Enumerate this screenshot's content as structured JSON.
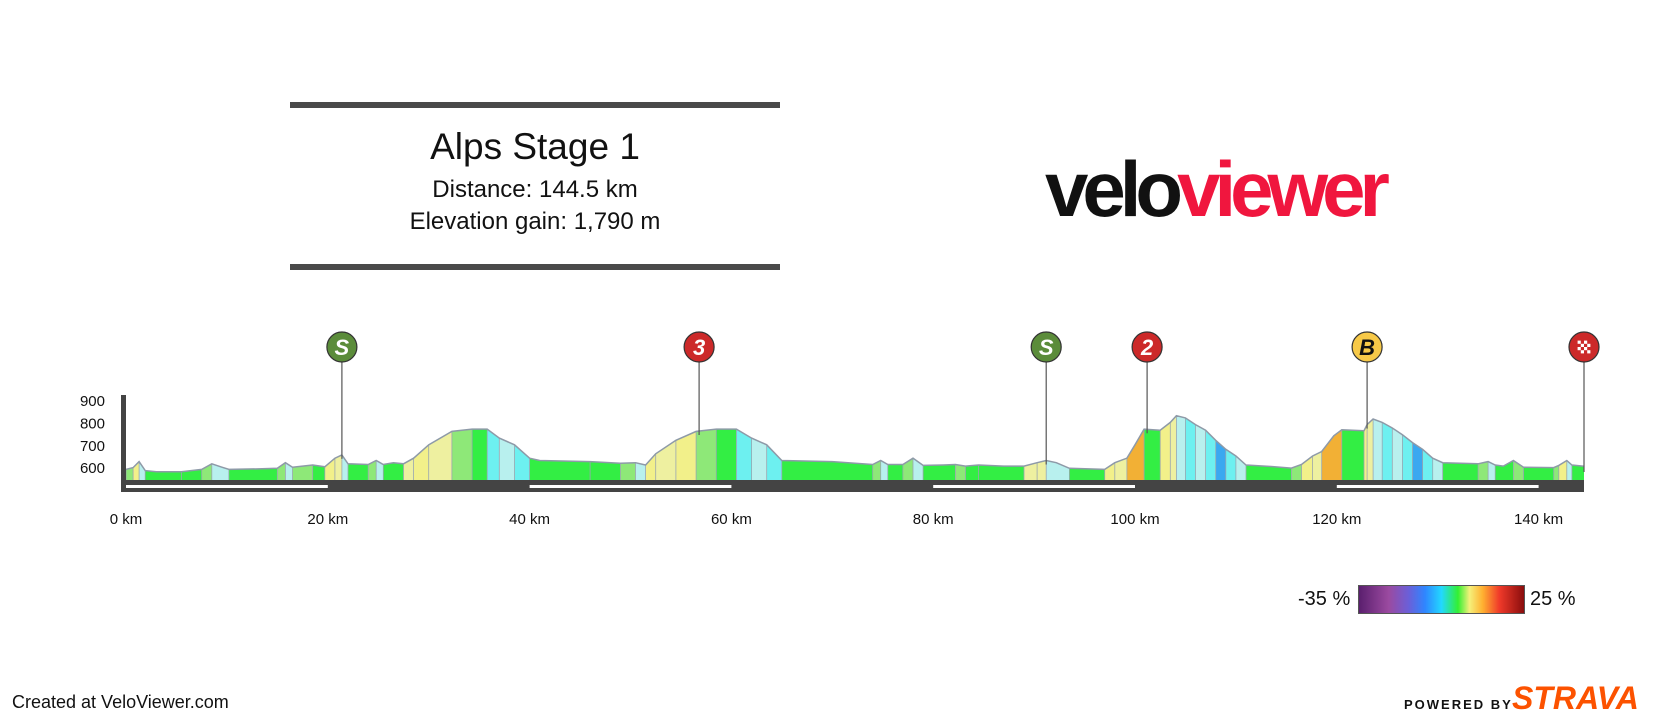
{
  "title": "Alps Stage 1",
  "distance_text": "Distance: 144.5 km",
  "elevation_text": "Elevation gain: 1,790 m",
  "logo": {
    "part1": "velo",
    "part2": "viewer"
  },
  "footer": {
    "created": "Created at VeloViewer.com",
    "powered_by": "POWERED BY",
    "brand": "STRAVA"
  },
  "gradient_legend": {
    "min_label": "-35 %",
    "max_label": "25 %"
  },
  "colors": {
    "profile_outline": "#8e9aa8",
    "flat": "#33ee44",
    "gentle": "#8ee878",
    "moderate": "#eef0a0",
    "yellow": "#f2f08a",
    "steep": "#f2b035",
    "descent_light": "#b8f0ee",
    "descent": "#6df0f0",
    "descent_steep": "#3aa8f0",
    "sprint": "#5b8c3a",
    "climb": "#cc2929",
    "bonus": "#f7c948",
    "axis": "#444444"
  },
  "chart_data": {
    "type": "area",
    "xlabel": "",
    "ylabel": "",
    "x_unit": "km",
    "xlim": [
      0,
      144.5
    ],
    "ylim": [
      500,
      950
    ],
    "y_ticks": [
      900,
      800,
      700,
      600
    ],
    "x_ticks": [
      {
        "value": 0,
        "label": "0 km"
      },
      {
        "value": 20,
        "label": "20 km"
      },
      {
        "value": 40,
        "label": "40 km"
      },
      {
        "value": 60,
        "label": "60 km"
      },
      {
        "value": 80,
        "label": "80 km"
      },
      {
        "value": 100,
        "label": "100 km"
      },
      {
        "value": 120,
        "label": "120 km"
      },
      {
        "value": 140,
        "label": "140 km"
      }
    ],
    "profile": [
      [
        0,
        590
      ],
      [
        0.7,
        598
      ],
      [
        1.3,
        625
      ],
      [
        1.9,
        585
      ],
      [
        3,
        580
      ],
      [
        5.5,
        580
      ],
      [
        7.5,
        590
      ],
      [
        8.5,
        615
      ],
      [
        9.5,
        600
      ],
      [
        10.2,
        590
      ],
      [
        13.5,
        593
      ],
      [
        15,
        595
      ],
      [
        15.8,
        620
      ],
      [
        16.5,
        600
      ],
      [
        17.5,
        605
      ],
      [
        18.5,
        610
      ],
      [
        19.7,
        602
      ],
      [
        20.7,
        640
      ],
      [
        21.4,
        655
      ],
      [
        22,
        615
      ],
      [
        24,
        612
      ],
      [
        24.8,
        630
      ],
      [
        25.5,
        612
      ],
      [
        26.5,
        620
      ],
      [
        27.5,
        615
      ],
      [
        28.5,
        640
      ],
      [
        30,
        700
      ],
      [
        32.3,
        760
      ],
      [
        34.3,
        770
      ],
      [
        35.8,
        770
      ],
      [
        37,
        730
      ],
      [
        38.5,
        700
      ],
      [
        40,
        640
      ],
      [
        41,
        630
      ],
      [
        46,
        625
      ],
      [
        49,
        618
      ],
      [
        50.5,
        620
      ],
      [
        51.5,
        610
      ],
      [
        52.5,
        660
      ],
      [
        54.5,
        720
      ],
      [
        56.5,
        760
      ],
      [
        58.5,
        770
      ],
      [
        60.5,
        770
      ],
      [
        62,
        730
      ],
      [
        63.5,
        700
      ],
      [
        65,
        630
      ],
      [
        70,
        625
      ],
      [
        74,
        612
      ],
      [
        74.8,
        630
      ],
      [
        75.5,
        612
      ],
      [
        77,
        612
      ],
      [
        78,
        640
      ],
      [
        79,
        608
      ],
      [
        81,
        610
      ],
      [
        82.2,
        612
      ],
      [
        83.2,
        605
      ],
      [
        84.5,
        610
      ],
      [
        87,
        605
      ],
      [
        89,
        605
      ],
      [
        90.3,
        620
      ],
      [
        91.2,
        630
      ],
      [
        92.2,
        620
      ],
      [
        93.5,
        595
      ],
      [
        97,
        590
      ],
      [
        98,
        620
      ],
      [
        99.2,
        640
      ],
      [
        100,
        700
      ],
      [
        100.9,
        770
      ],
      [
        102.5,
        765
      ],
      [
        103.5,
        800
      ],
      [
        104.1,
        830
      ],
      [
        105,
        820
      ],
      [
        106,
        790
      ],
      [
        107,
        765
      ],
      [
        108,
        720
      ],
      [
        109,
        680
      ],
      [
        110,
        650
      ],
      [
        111,
        610
      ],
      [
        113.5,
        603
      ],
      [
        115.5,
        596
      ],
      [
        116.5,
        612
      ],
      [
        117.6,
        650
      ],
      [
        118.5,
        670
      ],
      [
        119.7,
        740
      ],
      [
        120.5,
        767
      ],
      [
        122.7,
        763
      ],
      [
        123,
        790
      ],
      [
        123.6,
        815
      ],
      [
        124.5,
        800
      ],
      [
        125.5,
        775
      ],
      [
        126.5,
        745
      ],
      [
        127.5,
        710
      ],
      [
        128.5,
        680
      ],
      [
        129.5,
        640
      ],
      [
        130.5,
        620
      ],
      [
        134,
        615
      ],
      [
        135,
        625
      ],
      [
        135.7,
        610
      ],
      [
        136.5,
        605
      ],
      [
        137.5,
        630
      ],
      [
        138.5,
        600
      ],
      [
        141.5,
        598
      ],
      [
        142,
        608
      ],
      [
        142.8,
        630
      ],
      [
        143.3,
        610
      ],
      [
        144.5,
        604
      ]
    ],
    "segments": [
      [
        0,
        0.7,
        "gentle"
      ],
      [
        0.7,
        1.3,
        "yellow"
      ],
      [
        1.3,
        1.9,
        "descent_light"
      ],
      [
        1.9,
        5.5,
        "flat"
      ],
      [
        5.5,
        7.5,
        "flat"
      ],
      [
        7.5,
        8.5,
        "gentle"
      ],
      [
        8.5,
        10.2,
        "descent_light"
      ],
      [
        10.2,
        15,
        "flat"
      ],
      [
        15,
        15.8,
        "gentle"
      ],
      [
        15.8,
        16.5,
        "descent_light"
      ],
      [
        16.5,
        18.5,
        "gentle"
      ],
      [
        18.5,
        19.7,
        "flat"
      ],
      [
        19.7,
        20.7,
        "yellow"
      ],
      [
        20.7,
        21.4,
        "moderate"
      ],
      [
        21.4,
        22,
        "descent_light"
      ],
      [
        22,
        24,
        "flat"
      ],
      [
        24,
        24.8,
        "gentle"
      ],
      [
        24.8,
        25.5,
        "descent_light"
      ],
      [
        25.5,
        27.5,
        "flat"
      ],
      [
        27.5,
        28.5,
        "moderate"
      ],
      [
        28.5,
        30,
        "yellow"
      ],
      [
        30,
        32.3,
        "moderate"
      ],
      [
        32.3,
        34.3,
        "gentle"
      ],
      [
        34.3,
        35.8,
        "flat"
      ],
      [
        35.8,
        37,
        "descent"
      ],
      [
        37,
        38.5,
        "descent_light"
      ],
      [
        38.5,
        40,
        "descent"
      ],
      [
        40,
        46,
        "flat"
      ],
      [
        46,
        49,
        "flat"
      ],
      [
        49,
        50.5,
        "gentle"
      ],
      [
        50.5,
        51.5,
        "descent_light"
      ],
      [
        51.5,
        52.5,
        "yellow"
      ],
      [
        52.5,
        54.5,
        "moderate"
      ],
      [
        54.5,
        56.5,
        "yellow"
      ],
      [
        56.5,
        58.5,
        "gentle"
      ],
      [
        58.5,
        60.5,
        "flat"
      ],
      [
        60.5,
        62,
        "descent"
      ],
      [
        62,
        63.5,
        "descent_light"
      ],
      [
        63.5,
        65,
        "descent"
      ],
      [
        65,
        74,
        "flat"
      ],
      [
        74,
        74.8,
        "gentle"
      ],
      [
        74.8,
        75.5,
        "descent_light"
      ],
      [
        75.5,
        77,
        "flat"
      ],
      [
        77,
        78,
        "gentle"
      ],
      [
        78,
        79,
        "descent_light"
      ],
      [
        79,
        82.2,
        "flat"
      ],
      [
        82.2,
        83.2,
        "gentle"
      ],
      [
        83.2,
        84.5,
        "flat"
      ],
      [
        84.5,
        89,
        "flat"
      ],
      [
        89,
        90.3,
        "moderate"
      ],
      [
        90.3,
        91.2,
        "moderate"
      ],
      [
        91.2,
        93.5,
        "descent_light"
      ],
      [
        93.5,
        97,
        "flat"
      ],
      [
        97,
        98,
        "yellow"
      ],
      [
        98,
        99.2,
        "moderate"
      ],
      [
        99.2,
        100.9,
        "steep"
      ],
      [
        100.9,
        102.5,
        "flat"
      ],
      [
        102.5,
        103.5,
        "yellow"
      ],
      [
        103.5,
        104.1,
        "moderate"
      ],
      [
        104.1,
        105,
        "descent_light"
      ],
      [
        105,
        106,
        "descent"
      ],
      [
        106,
        107,
        "descent_light"
      ],
      [
        107,
        108,
        "descent"
      ],
      [
        108,
        109,
        "descent_steep"
      ],
      [
        109,
        110,
        "descent"
      ],
      [
        110,
        111,
        "descent_light"
      ],
      [
        111,
        115.5,
        "flat"
      ],
      [
        115.5,
        116.5,
        "gentle"
      ],
      [
        116.5,
        117.6,
        "yellow"
      ],
      [
        117.6,
        118.5,
        "moderate"
      ],
      [
        118.5,
        120.5,
        "steep"
      ],
      [
        120.5,
        122.7,
        "flat"
      ],
      [
        122.7,
        123,
        "yellow"
      ],
      [
        123,
        123.6,
        "moderate"
      ],
      [
        123.6,
        124.5,
        "descent_light"
      ],
      [
        124.5,
        125.5,
        "descent"
      ],
      [
        125.5,
        126.5,
        "descent_light"
      ],
      [
        126.5,
        127.5,
        "descent"
      ],
      [
        127.5,
        128.5,
        "descent_steep"
      ],
      [
        128.5,
        129.5,
        "descent"
      ],
      [
        129.5,
        130.5,
        "descent_light"
      ],
      [
        130.5,
        134,
        "flat"
      ],
      [
        134,
        135,
        "gentle"
      ],
      [
        135,
        135.7,
        "descent_light"
      ],
      [
        135.7,
        137.5,
        "flat"
      ],
      [
        137.5,
        138.5,
        "gentle"
      ],
      [
        138.5,
        141.5,
        "flat"
      ],
      [
        141.5,
        142,
        "gentle"
      ],
      [
        142,
        142.8,
        "yellow"
      ],
      [
        142.8,
        143.3,
        "descent_light"
      ],
      [
        143.3,
        144.5,
        "flat"
      ]
    ],
    "markers": [
      {
        "km": 21.4,
        "label": "S",
        "kind": "sprint"
      },
      {
        "km": 56.8,
        "label": "3",
        "kind": "climb"
      },
      {
        "km": 91.2,
        "label": "S",
        "kind": "sprint"
      },
      {
        "km": 101.2,
        "label": "2",
        "kind": "climb"
      },
      {
        "km": 123.0,
        "label": "B",
        "kind": "bonus"
      },
      {
        "km": 144.5,
        "label": "",
        "kind": "finish"
      }
    ]
  }
}
